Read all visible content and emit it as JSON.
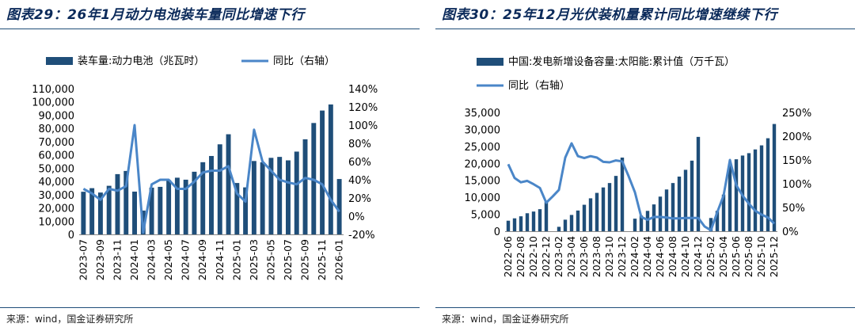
{
  "colors": {
    "bar": "#1f4e79",
    "line": "#4a86c8",
    "title": "#0b2a5a"
  },
  "left": {
    "title": "图表29：26年1月动力电池装车量同比增速下行",
    "source": "来源：wind，国金证券研究所",
    "legend_bar": "装车量:动力电池（兆瓦时）",
    "legend_line": "同比（右轴）",
    "chart_data": {
      "type": "bar+line",
      "title": "图表29：26年1月动力电池装车量同比增速下行",
      "categories": [
        "2023-07",
        "2023-08",
        "2023-09",
        "2023-10",
        "2023-11",
        "2023-12",
        "2024-01",
        "2024-02",
        "2024-03",
        "2024-04",
        "2024-05",
        "2024-06",
        "2024-07",
        "2024-08",
        "2024-09",
        "2024-10",
        "2024-11",
        "2024-12",
        "2025-01",
        "2025-02",
        "2025-03",
        "2025-04",
        "2025-05",
        "2025-06",
        "2025-07",
        "2025-08",
        "2025-09",
        "2025-10",
        "2025-11",
        "2025-12",
        "2026-01"
      ],
      "x_tick_labels": [
        "2023-07",
        "2023-09",
        "2023-11",
        "2024-01",
        "2024-03",
        "2024-05",
        "2024-07",
        "2024-09",
        "2024-11",
        "2025-01",
        "2025-03",
        "2025-05",
        "2025-07",
        "2025-09",
        "2025-11",
        "2026-01"
      ],
      "series": [
        {
          "name": "装车量:动力电池（兆瓦时）",
          "type": "bar",
          "axis": "left",
          "values": [
            32200,
            34900,
            31600,
            36700,
            45500,
            47900,
            32300,
            18000,
            35300,
            35900,
            41000,
            42800,
            41300,
            47300,
            54500,
            59200,
            68000,
            75600,
            38800,
            35500,
            55400,
            54400,
            57800,
            58500,
            55900,
            62500,
            71800,
            84100,
            93500,
            98100,
            41800
          ]
        },
        {
          "name": "同比（右轴）",
          "type": "line",
          "axis": "right",
          "values": [
            30,
            25,
            18,
            30,
            28,
            33,
            100,
            -18,
            35,
            40,
            40,
            30,
            30,
            38,
            48,
            50,
            50,
            55,
            25,
            16,
            95,
            60,
            50,
            40,
            37,
            35,
            42,
            40,
            35,
            18,
            5
          ]
        }
      ],
      "y_left": {
        "min": 0,
        "max": 110000,
        "step": 10000,
        "tick_labels": [
          "0",
          "10,000",
          "20,000",
          "30,000",
          "40,000",
          "50,000",
          "60,000",
          "70,000",
          "80,000",
          "90,000",
          "100,000",
          "110,000"
        ]
      },
      "y_right": {
        "min": -20,
        "max": 140,
        "step": 20,
        "tick_labels": [
          "-20%",
          "0%",
          "20%",
          "40%",
          "60%",
          "80%",
          "100%",
          "120%",
          "140%"
        ]
      },
      "legend_position": "top"
    }
  },
  "right": {
    "title": "图表30：25年12月光伏装机量累计同比增速继续下行",
    "source": "来源：wind，国金证券研究所",
    "legend_bar": "中国:发电新增设备容量:太阳能:累计值（万千瓦）",
    "legend_line": "同比（右轴）",
    "chart_data": {
      "type": "bar+line",
      "title": "图表30：25年12月光伏装机量累计同比增速继续下行",
      "categories": [
        "2022-06",
        "2022-07",
        "2022-08",
        "2022-09",
        "2022-10",
        "2022-11",
        "2022-12",
        "2023-01",
        "2023-02",
        "2023-03",
        "2023-04",
        "2023-05",
        "2023-06",
        "2023-07",
        "2023-08",
        "2023-09",
        "2023-10",
        "2023-11",
        "2023-12",
        "2024-01",
        "2024-02",
        "2024-03",
        "2024-04",
        "2024-05",
        "2024-06",
        "2024-07",
        "2024-08",
        "2024-09",
        "2024-10",
        "2024-11",
        "2024-12",
        "2025-01",
        "2025-02",
        "2025-03",
        "2025-04",
        "2025-05",
        "2025-06",
        "2025-07",
        "2025-08",
        "2025-09",
        "2025-10",
        "2025-11",
        "2025-12"
      ],
      "x_tick_labels": [
        "2022-06",
        "2022-08",
        "2022-10",
        "2022-12",
        "2023-02",
        "2023-04",
        "2023-06",
        "2023-08",
        "2023-10",
        "2023-12",
        "2024-02",
        "2024-04",
        "2024-06",
        "2024-08",
        "2024-10",
        "2024-12",
        "2025-02",
        "2025-04",
        "2025-06",
        "2025-08",
        "2025-10",
        "2025-12"
      ],
      "series": [
        {
          "name": "中国:发电新增设备容量:太阳能:累计值（万千瓦）",
          "type": "bar",
          "axis": "left",
          "values": [
            3100,
            3800,
            4400,
            5300,
            5800,
            6500,
            8700,
            0,
            1300,
            3400,
            4800,
            6100,
            7800,
            9700,
            11300,
            12900,
            14200,
            16300,
            21700,
            0,
            3700,
            4600,
            6000,
            7900,
            10200,
            12300,
            14200,
            16100,
            18100,
            20800,
            27800,
            0,
            3900,
            6000,
            10800,
            19800,
            21200,
            22300,
            23000,
            24100,
            25300,
            27400,
            31600
          ]
        },
        {
          "name": "同比（右轴）",
          "type": "line",
          "axis": "right",
          "values": [
            141,
            112,
            103,
            106,
            99,
            91,
            60,
            73,
            87,
            155,
            185,
            158,
            154,
            158,
            155,
            146,
            145,
            149,
            147,
            116,
            82,
            30,
            24,
            30,
            30,
            29,
            27,
            27,
            28,
            28,
            28,
            10,
            2,
            40,
            75,
            150,
            97,
            75,
            58,
            43,
            35,
            29,
            16
          ]
        }
      ],
      "y_left": {
        "min": 0,
        "max": 35000,
        "step": 5000,
        "tick_labels": [
          "0",
          "5,000",
          "10,000",
          "15,000",
          "20,000",
          "25,000",
          "30,000",
          "35,000"
        ]
      },
      "y_right": {
        "min": 0,
        "max": 250,
        "step": 50,
        "tick_labels": [
          "0%",
          "50%",
          "100%",
          "150%",
          "200%",
          "250%"
        ]
      },
      "legend_position": "top"
    }
  }
}
